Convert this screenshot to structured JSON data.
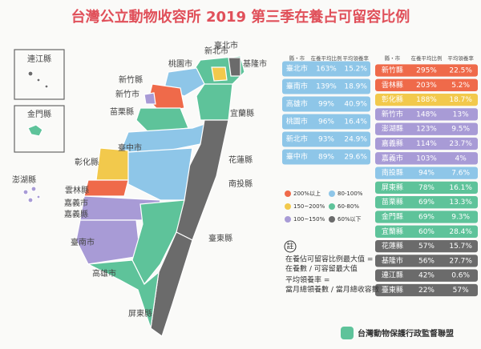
{
  "header": {
    "title": "台灣公立動物收容所 2019 第三季在養占可留容比例"
  },
  "map": {
    "regions": [
      "連江縣",
      "金門縣",
      "澎湖縣",
      "基隆市",
      "臺北市",
      "新北市",
      "桃園市",
      "新竹縣",
      "新竹市",
      "苗栗縣",
      "宜蘭縣",
      "臺中市",
      "花蓮縣",
      "彰化縣",
      "南投縣",
      "雲林縣",
      "嘉義市",
      "嘉義縣",
      "臺南市",
      "高雄市",
      "臺東縣",
      "屏東縣"
    ]
  },
  "tables": [
    {
      "header": [
        "縣・市",
        "在養平均比例",
        "平均領養率"
      ],
      "rows": [
        [
          "臺北市",
          "163%",
          "15.2%"
        ],
        [
          "臺南市",
          "139%",
          "18.9%"
        ],
        [
          "高雄市",
          "99%",
          "40.9%"
        ],
        [
          "桃園市",
          "96%",
          "16.4%"
        ],
        [
          "新北市",
          "93%",
          "24.9%"
        ],
        [
          "臺中市",
          "89%",
          "29.6%"
        ]
      ],
      "colors": [
        "#8ec6e8",
        "#8ec6e8",
        "#8ec6e8",
        "#8ec6e8",
        "#8ec6e8",
        "#8ec6e8"
      ]
    },
    {
      "header": [
        "縣・市",
        "在養平均比例",
        "平均領養率"
      ],
      "rows": [
        [
          "新竹縣",
          "295%",
          "22.5%"
        ],
        [
          "雲林縣",
          "203%",
          "5.2%"
        ],
        [
          "彰化縣",
          "188%",
          "18.7%"
        ],
        [
          "新竹市",
          "148%",
          "13%"
        ],
        [
          "澎湖縣",
          "123%",
          "9.5%"
        ],
        [
          "嘉義縣",
          "114%",
          "23.7%"
        ],
        [
          "嘉義市",
          "103%",
          "4%"
        ],
        [
          "南投縣",
          "94%",
          "7.6%"
        ],
        [
          "屏東縣",
          "78%",
          "16.1%"
        ],
        [
          "苗栗縣",
          "69%",
          "13.3%"
        ],
        [
          "金門縣",
          "69%",
          "9.3%"
        ],
        [
          "宜蘭縣",
          "60%",
          "28.4%"
        ],
        [
          "花蓮縣",
          "57%",
          "15.7%"
        ],
        [
          "基隆市",
          "56%",
          "27.7%"
        ],
        [
          "連江縣",
          "42%",
          "0.6%"
        ],
        [
          "臺東縣",
          "22%",
          "57%"
        ]
      ],
      "colors": [
        "#ef6a4a",
        "#ef6a4a",
        "#f2c94c",
        "#a89bd6",
        "#a89bd6",
        "#a89bd6",
        "#a89bd6",
        "#8ec6e8",
        "#5ec39a",
        "#5ec39a",
        "#5ec39a",
        "#5ec39a",
        "#6b6b6b",
        "#6b6b6b",
        "#6b6b6b",
        "#6b6b6b"
      ]
    }
  ],
  "legend": [
    {
      "label": "200%以上",
      "color": "#ef6a4a"
    },
    {
      "label": "80-100%",
      "color": "#8ec6e8"
    },
    {
      "label": "150~200%",
      "color": "#f2c94c"
    },
    {
      "label": "60-80%",
      "color": "#5ec39a"
    },
    {
      "label": "100~150%",
      "color": "#a89bd6"
    },
    {
      "label": "60%以下",
      "color": "#6b6b6b"
    }
  ],
  "note": {
    "mark": "註",
    "lines": [
      "在養佔可留容比例最大值 =",
      "在養數 / 可容留最大值",
      "平均領養率 =",
      "當月總領養數 / 當月總收容數"
    ]
  },
  "footer": {
    "org": "台灣動物保護行政監督聯盟"
  }
}
